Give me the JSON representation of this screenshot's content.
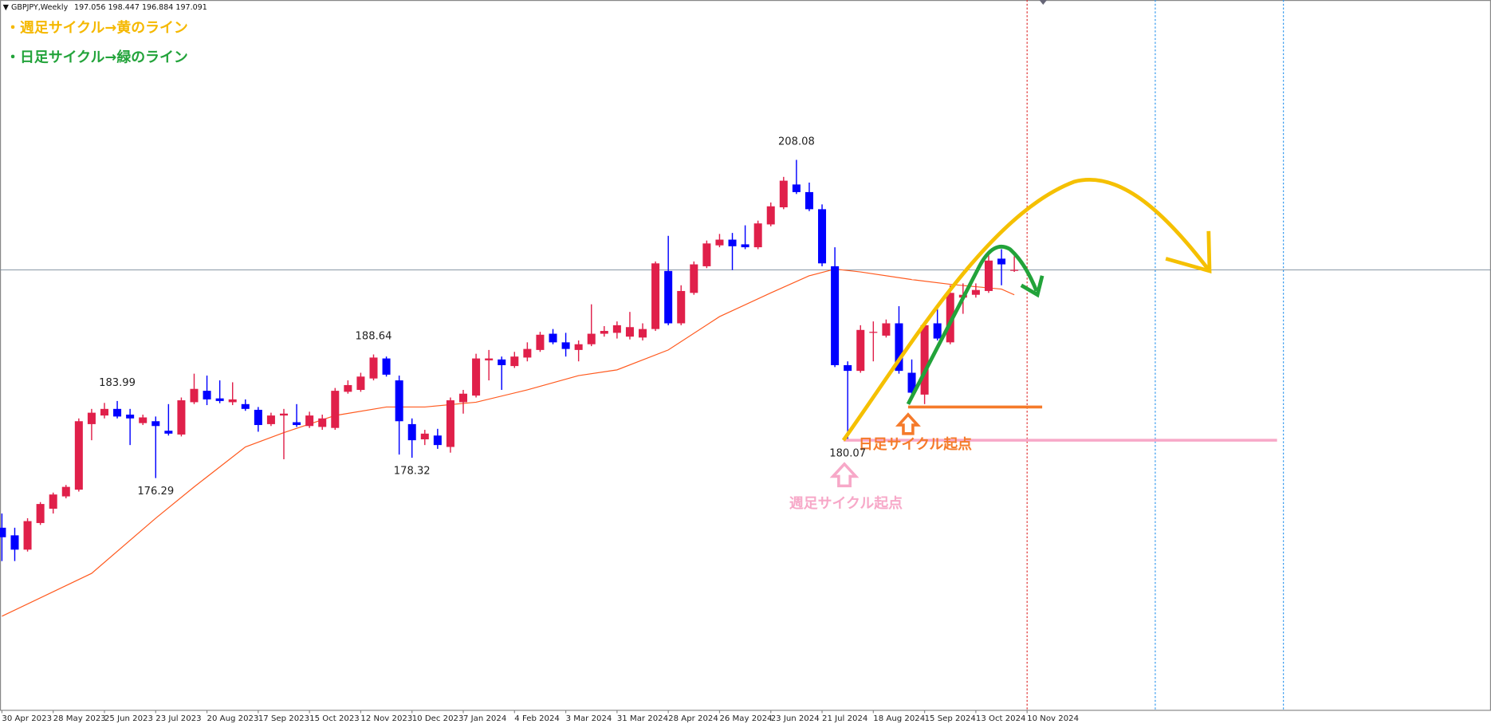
{
  "chart_data": {
    "type": "candlestick",
    "symbol": "GBPJPY,Weekly",
    "open": [
      171.33,
      170.57,
      169.14,
      171.8,
      173.23,
      174.46,
      175.13,
      181.68,
      182.54,
      183.2,
      182.63,
      181.78,
      181.97,
      181.02,
      180.64,
      183.87,
      185.01,
      184.25,
      183.87,
      183.68,
      183.11,
      181.68,
      182.54,
      181.87,
      181.49,
      181.4,
      181.3,
      184.91,
      185.1,
      186.24,
      188.24,
      186.05,
      181.68,
      180.16,
      180.54,
      179.4,
      183.87,
      184.53,
      188.05,
      188.14,
      187.48,
      188.33,
      189.09,
      190.71,
      189.85,
      189.09,
      189.66,
      190.71,
      190.8,
      190.42,
      190.33,
      191.18,
      196.98,
      191.75,
      194.79,
      197.45,
      199.54,
      200.11,
      199.64,
      199.35,
      201.63,
      203.34,
      205.62,
      204.86,
      203.15,
      197.45,
      187.57,
      187.0,
      190.8,
      190.52,
      191.75,
      186.81,
      184.63,
      191.75,
      189.85,
      194.32,
      194.6,
      194.98,
      198.21,
      197.056
    ],
    "high": [
      172.75,
      171.33,
      172.28,
      173.89,
      174.84,
      175.6,
      182.25,
      183.2,
      183.8,
      183.99,
      183.2,
      182.63,
      182.44,
      183.68,
      184.34,
      186.72,
      186.53,
      186.05,
      185.86,
      184.15,
      183.39,
      182.82,
      183.2,
      183.68,
      182.92,
      182.63,
      185.29,
      186.05,
      186.81,
      188.64,
      188.43,
      186.53,
      182.25,
      181.11,
      181.21,
      184.34,
      185.1,
      188.71,
      189.09,
      188.43,
      188.9,
      189.85,
      190.9,
      191.18,
      190.8,
      190.04,
      193.65,
      191.47,
      191.94,
      192.89,
      191.75,
      197.93,
      200.49,
      195.55,
      197.93,
      200.02,
      200.68,
      200.78,
      201.54,
      202.01,
      203.82,
      206.38,
      208.08,
      205.81,
      203.63,
      199.35,
      187.95,
      191.56,
      191.94,
      192.13,
      193.46,
      188.14,
      191.75,
      193.18,
      195.55,
      195.74,
      195.74,
      198.88,
      199.16,
      198.447
    ],
    "low": [
      168.0,
      168.0,
      168.95,
      171.61,
      172.75,
      174.27,
      174.94,
      180.07,
      182.25,
      182.25,
      179.59,
      181.59,
      176.29,
      180.54,
      180.45,
      183.68,
      183.58,
      183.77,
      183.58,
      183.01,
      180.92,
      181.49,
      178.17,
      181.4,
      181.3,
      181.11,
      181.11,
      184.72,
      184.91,
      186.05,
      186.43,
      178.64,
      178.32,
      179.59,
      179.21,
      178.83,
      182.73,
      184.34,
      186.05,
      185.1,
      187.29,
      187.95,
      188.9,
      189.66,
      188.43,
      187.95,
      189.47,
      190.42,
      190.23,
      190.14,
      190.04,
      190.99,
      191.56,
      191.56,
      194.6,
      197.26,
      199.35,
      197.07,
      199.16,
      199.16,
      201.44,
      203.15,
      204.67,
      202.96,
      197.45,
      187.38,
      180.07,
      186.81,
      187.95,
      190.33,
      186.72,
      184.63,
      183.68,
      190.04,
      189.66,
      192.7,
      194.32,
      194.79,
      195.55,
      196.884
    ],
    "close": [
      170.38,
      169.14,
      171.99,
      173.7,
      174.65,
      175.41,
      181.97,
      182.82,
      183.2,
      182.44,
      182.25,
      182.35,
      181.49,
      180.73,
      184.06,
      185.2,
      184.15,
      183.99,
      184.15,
      183.2,
      181.59,
      182.54,
      182.73,
      181.59,
      182.54,
      182.25,
      185.01,
      185.58,
      186.43,
      188.33,
      186.62,
      181.97,
      180.07,
      180.73,
      179.59,
      184.06,
      184.72,
      188.24,
      188.24,
      187.57,
      188.43,
      189.19,
      190.61,
      189.85,
      189.19,
      189.66,
      190.71,
      190.99,
      191.56,
      191.37,
      191.18,
      197.74,
      191.75,
      194.98,
      197.64,
      199.73,
      200.11,
      199.45,
      199.35,
      201.73,
      203.44,
      206.0,
      204.86,
      203.15,
      197.74,
      187.57,
      187.0,
      191.09,
      190.9,
      191.75,
      187.0,
      184.82,
      191.56,
      190.23,
      194.79,
      194.6,
      195.08,
      198.02,
      197.64,
      197.091
    ],
    "up_color": "#e0204a",
    "down_color": "#0000ff",
    "ma": {
      "color": "#ff5a1f",
      "x": [
        0,
        7,
        12,
        15,
        19,
        22,
        26,
        30,
        33,
        37,
        41,
        45,
        48,
        52,
        56,
        60,
        63,
        65,
        67,
        71,
        74,
        78,
        79
      ],
      "values": [
        162.49,
        166.77,
        172.28,
        175.41,
        179.4,
        180.83,
        182.54,
        183.39,
        183.39,
        183.87,
        185.1,
        186.53,
        187.1,
        189.09,
        192.42,
        194.79,
        196.5,
        197.17,
        196.88,
        196.12,
        195.65,
        195.17,
        194.6
      ]
    },
    "xlim": [
      -0.15,
      116.2
    ],
    "ylim": [
      153.09,
      224.05
    ],
    "xticks": [
      {
        "value": 0,
        "label": "30 Apr 2023"
      },
      {
        "value": 4,
        "label": "28 May 2023"
      },
      {
        "value": 8,
        "label": "25 Jun 2023"
      },
      {
        "value": 12,
        "label": "23 Jul 2023"
      },
      {
        "value": 16,
        "label": "20 Aug 2023"
      },
      {
        "value": 20,
        "label": "17 Sep 2023"
      },
      {
        "value": 24,
        "label": "15 Oct 2023"
      },
      {
        "value": 28,
        "label": "12 Nov 2023"
      },
      {
        "value": 32,
        "label": "10 Dec 2023"
      },
      {
        "value": 36,
        "label": "7 Jan 2024"
      },
      {
        "value": 40,
        "label": "4 Feb 2024"
      },
      {
        "value": 44,
        "label": "3 Mar 2024"
      },
      {
        "value": 48,
        "label": "31 Mar 2024"
      },
      {
        "value": 52,
        "label": "28 Apr 2024"
      },
      {
        "value": 56,
        "label": "26 May 2024"
      },
      {
        "value": 60,
        "label": "23 Jun 2024"
      },
      {
        "value": 64,
        "label": "21 Jul 2024"
      },
      {
        "value": 68,
        "label": "18 Aug 2024"
      },
      {
        "value": 72,
        "label": "15 Sep 2024"
      },
      {
        "value": 76,
        "label": "13 Oct 2024"
      },
      {
        "value": 80,
        "label": "10 Nov 2024"
      }
    ],
    "vlines": [
      {
        "x": 80,
        "color": "#e03030"
      },
      {
        "x": 90,
        "color": "#3399ee"
      },
      {
        "x": 100,
        "color": "#3399ee"
      }
    ],
    "notes": {
      "weekly_line": "・週足サイクル→黄のライン",
      "daily_line": "・日足サイクル→緑のライン",
      "daily_origin": "日足サイクル起点",
      "weekly_origin": "週足サイクル起点"
    }
  }
}
